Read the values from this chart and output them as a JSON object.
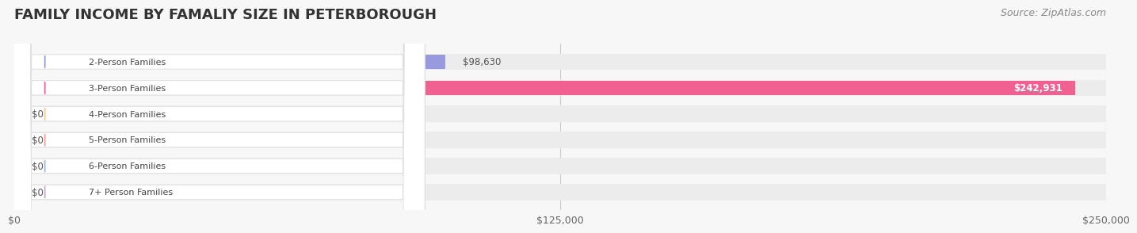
{
  "title": "FAMILY INCOME BY FAMALIY SIZE IN PETERBOROUGH",
  "source": "Source: ZipAtlas.com",
  "categories": [
    "2-Person Families",
    "3-Person Families",
    "4-Person Families",
    "5-Person Families",
    "6-Person Families",
    "7+ Person Families"
  ],
  "values": [
    98630,
    242931,
    0,
    0,
    0,
    0
  ],
  "bar_colors": [
    "#9999dd",
    "#f06090",
    "#f5c990",
    "#f5a090",
    "#a0b8e8",
    "#c8a8d8"
  ],
  "label_colors": [
    "#9999dd",
    "#f06090",
    "#f5c990",
    "#f5a090",
    "#a0b8e8",
    "#c8a8d8"
  ],
  "background_color": "#f7f7f7",
  "bar_bg_color": "#efefef",
  "xlim": [
    0,
    250000
  ],
  "xticks": [
    0,
    125000,
    250000
  ],
  "xtick_labels": [
    "$0",
    "$125,000",
    "$250,000"
  ],
  "title_fontsize": 13,
  "source_fontsize": 9,
  "bar_height": 0.55,
  "value_label_2": "$98,630",
  "value_label_3": "$242,931",
  "value_label_zeros": "$0"
}
